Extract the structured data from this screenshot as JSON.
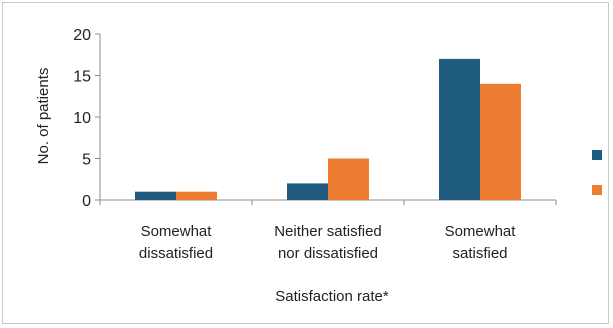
{
  "chart_data": {
    "type": "bar",
    "title": "",
    "xlabel": "Satisfaction rate*",
    "ylabel": "No. of patients",
    "ylim": [
      0,
      20
    ],
    "yticks": [
      0,
      5,
      10,
      15,
      20
    ],
    "grid": false,
    "legend": "right",
    "categories": [
      [
        "Somewhat",
        "dissatisfied"
      ],
      [
        "Neither satisfied",
        "nor dissatisfied"
      ],
      [
        "Somewhat",
        "satisfied"
      ]
    ],
    "series": [
      {
        "color": "#1f5c80",
        "values": [
          1,
          2,
          17
        ]
      },
      {
        "color": "#ed7d31",
        "values": [
          1,
          5,
          14
        ]
      }
    ]
  }
}
